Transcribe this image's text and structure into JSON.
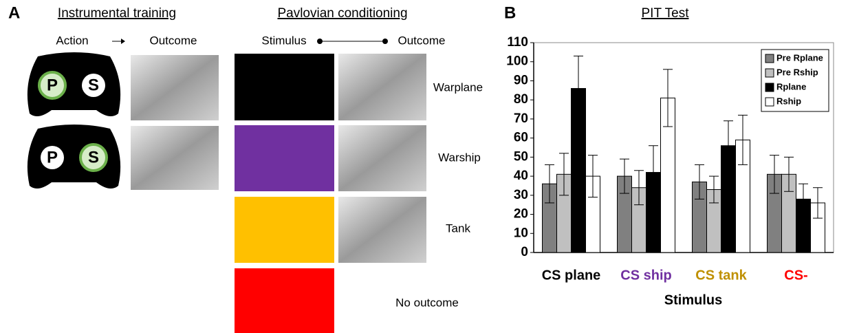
{
  "panel_a": {
    "label": "A",
    "instrumental": {
      "title": "Instrumental training",
      "action": "Action",
      "outcome": "Outcome",
      "controllers": [
        {
          "left": "P",
          "right": "S"
        },
        {
          "left": "P",
          "right": "S"
        }
      ]
    },
    "pavlovian": {
      "title": "Pavlovian conditioning",
      "stimulus": "Stimulus",
      "outcome": "Outcome",
      "outcomes": [
        "Warplane",
        "Warship",
        "Tank",
        "No outcome"
      ]
    }
  },
  "panel_b_label": "B",
  "chart_data": {
    "type": "bar",
    "title": "PIT Test",
    "x_label": "Stimulus",
    "categories": [
      "CS plane",
      "CS ship",
      "CS tank",
      "CS-"
    ],
    "category_colors": [
      "#000000",
      "#7030a0",
      "#bf9000",
      "#ff0000"
    ],
    "series": [
      {
        "name": "Pre Rplane",
        "color": "#808080",
        "values": [
          36,
          40,
          37,
          41
        ],
        "errors": [
          10,
          9,
          9,
          10
        ]
      },
      {
        "name": "Pre Rship",
        "color": "#c0c0c0",
        "values": [
          41,
          34,
          33,
          41
        ],
        "errors": [
          11,
          9,
          7,
          9
        ]
      },
      {
        "name": "Rplane",
        "color": "#000000",
        "values": [
          86,
          42,
          56,
          28
        ],
        "errors": [
          17,
          14,
          13,
          8
        ]
      },
      {
        "name": "Rship",
        "color": "#ffffff",
        "values": [
          40,
          81,
          59,
          26
        ],
        "errors": [
          11,
          15,
          13,
          8
        ]
      }
    ],
    "ylim": [
      0,
      110
    ],
    "yticks": [
      0,
      10,
      20,
      30,
      40,
      50,
      60,
      70,
      80,
      90,
      100,
      110
    ],
    "grid": false,
    "legend": "top-right"
  }
}
